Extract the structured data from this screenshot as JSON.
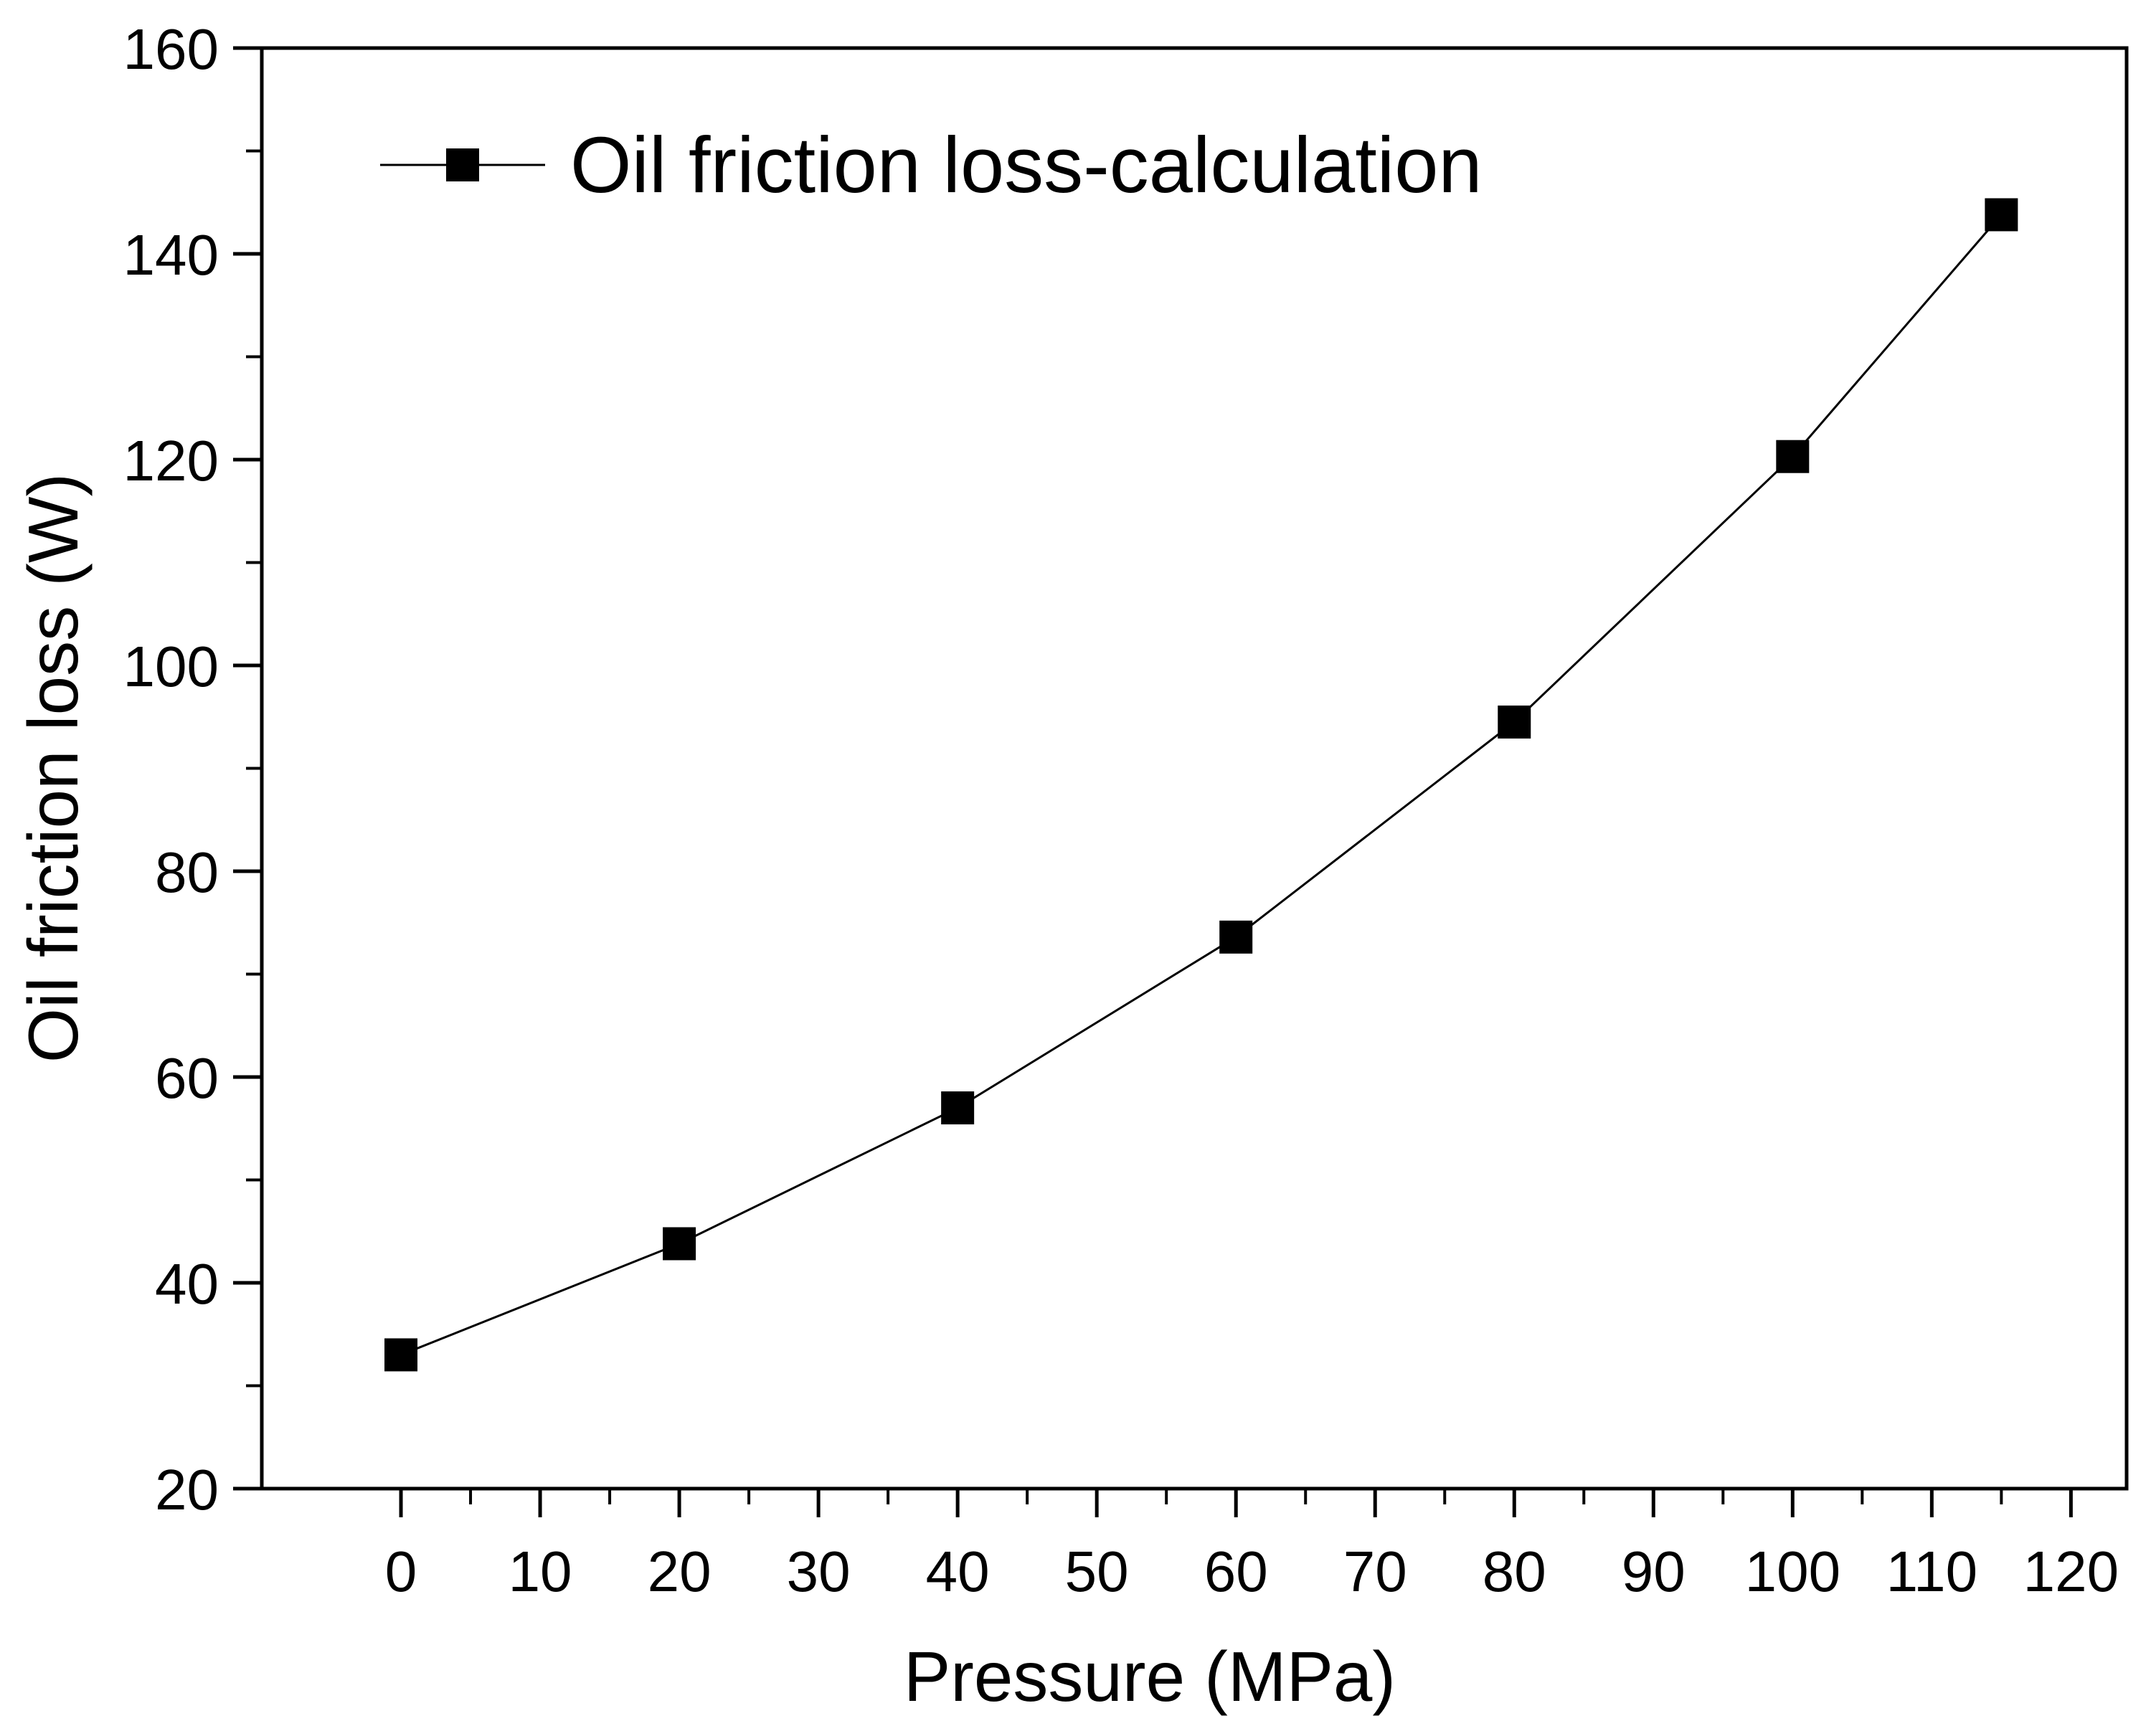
{
  "chart_data": {
    "type": "line",
    "title": "",
    "xlabel": "Pressure (MPa)",
    "ylabel": "Oil friction loss (W)",
    "xlim": [
      -10,
      124
    ],
    "ylim": [
      20,
      160
    ],
    "x_ticks": [
      0,
      10,
      20,
      30,
      40,
      50,
      60,
      70,
      80,
      90,
      100,
      110,
      120
    ],
    "x_tick_labels": [
      "0",
      "10",
      "20",
      "30",
      "40",
      "50",
      "60",
      "70",
      "80",
      "90",
      "100",
      "110",
      "120"
    ],
    "y_ticks": [
      20,
      40,
      60,
      80,
      100,
      120,
      140,
      160
    ],
    "y_tick_labels": [
      "20",
      "40",
      "60",
      "80",
      "100",
      "120",
      "140",
      "160"
    ],
    "grid": false,
    "legend_position": "top-left",
    "series": [
      {
        "name": "Oil friction loss-calculation",
        "marker": "square",
        "color": "#000000",
        "x": [
          0,
          20,
          40,
          60,
          80,
          100,
          115
        ],
        "y": [
          33,
          43.8,
          57,
          73.6,
          94.5,
          120.3,
          143.8
        ]
      }
    ]
  }
}
